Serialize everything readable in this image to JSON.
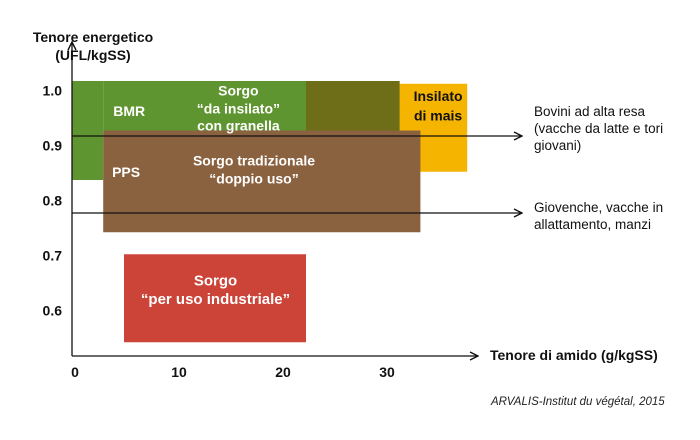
{
  "chart_data": {
    "type": "range-boxes",
    "ylabel_lines": [
      "Tenore energetico",
      "(UFL/kgSS)"
    ],
    "xlabel": "Tenore di amido (g/kgSS)",
    "xlim": [
      0,
      38
    ],
    "ylim": [
      0.5,
      1.05
    ],
    "x_ticks": [
      0,
      10,
      20,
      30
    ],
    "y_ticks": [
      0.6,
      0.7,
      0.8,
      0.9,
      1.0
    ],
    "y_tick_labels": [
      "0.6",
      "0.7",
      "0.8",
      "0.9",
      "1.0"
    ],
    "grid": false,
    "series": [
      {
        "name": "BMR – Sorgo “da insilato” con granella",
        "color": "#5f9530",
        "x_range": [
          0,
          31.5
        ],
        "y_range": [
          0.84,
          1.02
        ],
        "step": {
          "x_from": 0,
          "x_to": 3,
          "y_lower": 0.84,
          "y_lower_rest": 0.93
        },
        "labels": [
          {
            "text": "BMR",
            "x": 5.5,
            "y": 0.963
          },
          {
            "text": "Sorgo",
            "x": 16,
            "y": 1.0
          },
          {
            "text": "“da insilato”",
            "x": 16,
            "y": 0.968
          },
          {
            "text": "con granella",
            "x": 16,
            "y": 0.937
          }
        ]
      },
      {
        "name": "Insilato di mais",
        "color": "#f5b400",
        "x_range": [
          22.5,
          38
        ],
        "y_range": [
          0.855,
          1.015
        ],
        "labels": [
          {
            "text": "Insilato",
            "x": 35.2,
            "y": 0.99
          },
          {
            "text": "di mais",
            "x": 35.2,
            "y": 0.955
          }
        ]
      },
      {
        "name": "PPS – Sorgo tradizionale “doppio uso”",
        "color": "#8b6240",
        "x_range": [
          3,
          33.5
        ],
        "y_range": [
          0.745,
          0.93
        ],
        "labels": [
          {
            "text": "PPS",
            "x": 5.2,
            "y": 0.852
          },
          {
            "text": "Sorgo tradizionale",
            "x": 17.5,
            "y": 0.873
          },
          {
            "text": "“doppio uso”",
            "x": 17.5,
            "y": 0.84
          }
        ]
      },
      {
        "name": "Sorgo “per uso industriale”",
        "color": "#cc4338",
        "x_range": [
          5,
          22.5
        ],
        "y_range": [
          0.545,
          0.705
        ],
        "labels": [
          {
            "text": "Sorgo",
            "x": 13.8,
            "y": 0.655
          },
          {
            "text": "“per uso industriale”",
            "x": 13.8,
            "y": 0.622
          }
        ]
      }
    ],
    "overlap_color": "#6d6e17",
    "overlap": {
      "x_range": [
        22.5,
        31.5
      ],
      "y_range": [
        0.93,
        1.02
      ]
    },
    "reference_lines": [
      {
        "y": 0.92,
        "label_lines": [
          "Bovini ad alta resa",
          "(vacche da latte e tori",
          "giovani)"
        ]
      },
      {
        "y": 0.78,
        "label_lines": [
          "Giovenche, vacche in",
          "allattamento, manzi"
        ]
      }
    ],
    "source": "ARVALIS-Institut du végétal, 2015"
  }
}
